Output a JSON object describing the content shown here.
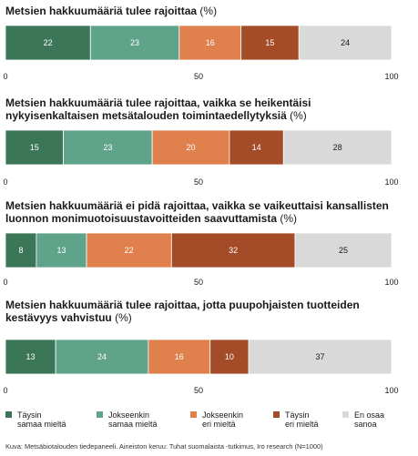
{
  "chart_data": {
    "type": "bar",
    "orientation": "horizontal-stacked",
    "xlim": [
      0,
      100
    ],
    "x_ticks": [
      "0",
      "50",
      "100"
    ],
    "unit_label": "(%)",
    "categories": [
      "Täysin samaa mieltä",
      "Jokseenkin samaa mieltä",
      "Jokseenkin eri mieltä",
      "Täysin eri mieltä",
      "En osaa sanoa"
    ],
    "colors": [
      "#3b7658",
      "#5fa48a",
      "#e0804c",
      "#a44c27",
      "#d9d9d9"
    ],
    "charts": [
      {
        "title_lines": [
          "Metsien hakkuumääriä tulee rajoittaa"
        ],
        "values": [
          22,
          23,
          16,
          15,
          24
        ]
      },
      {
        "title_lines": [
          "Metsien hakkuumääriä tulee rajoittaa, vaikka se heikentäisi",
          "nykyisenkaltaisen metsätalouden toimintaedellytyksiä"
        ],
        "values": [
          15,
          23,
          20,
          14,
          28
        ]
      },
      {
        "title_lines": [
          "Metsien hakkuumääriä ei pidä rajoittaa, vaikka se vaikeuttaisi kansallisten",
          "luonnon monimuotoisuustavoitteiden saavuttamista"
        ],
        "values": [
          8,
          13,
          22,
          32,
          25
        ]
      },
      {
        "title_lines": [
          "Metsien hakkuumääriä tulee rajoittaa, jotta puupohjaisten tuotteiden",
          "kestävyys vahvistuu"
        ],
        "values": [
          13,
          24,
          16,
          10,
          37
        ]
      }
    ],
    "legend": [
      [
        "Täysin",
        "samaa mieltä"
      ],
      [
        "Jokseenkin",
        "samaa mieltä"
      ],
      [
        "Jokseenkin",
        "eri mieltä"
      ],
      [
        "Täysin",
        "eri mieltä"
      ],
      [
        "En osaa",
        "sanoa"
      ]
    ],
    "legend_position": "bottom"
  },
  "source_text": "Kuva: Metsäbiotalouden tiedepaneeli. Aineiston keruu: Tuhat suomalaista -tutkimus, Iro research (N=1000)"
}
